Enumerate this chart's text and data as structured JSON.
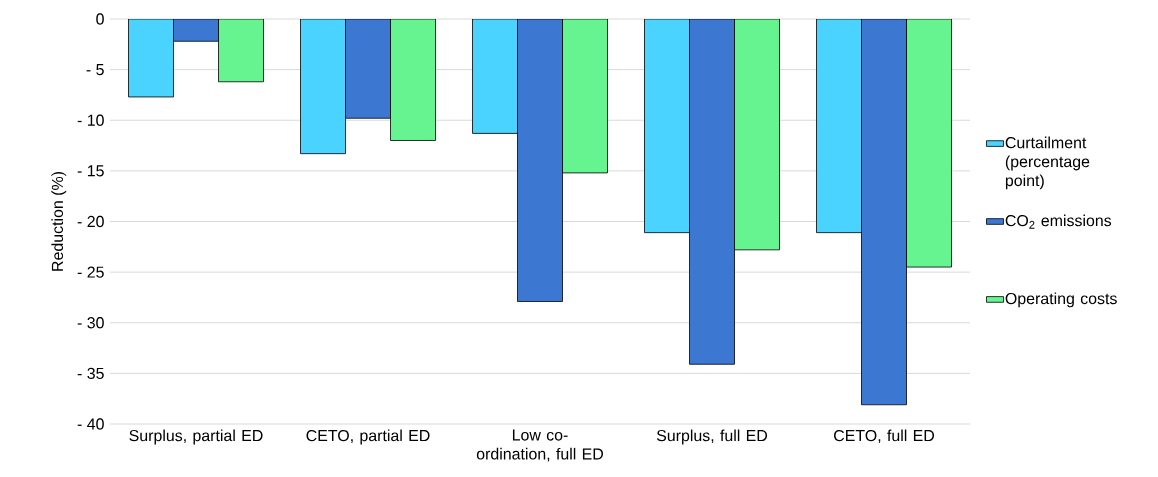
{
  "chart_data": {
    "type": "bar",
    "ylabel": "Reduction (%)",
    "categories": [
      "Surplus, partial ED",
      "CETO, partial ED",
      "Low co-ordination, full ED",
      "Surplus, full ED",
      "CETO, full ED"
    ],
    "series": [
      {
        "name": "Curtailment (percentage point)",
        "color": "#49d3fe",
        "values": [
          -7.7,
          -13.3,
          -11.3,
          -21.1,
          -21.1
        ]
      },
      {
        "name": "CO$_{2}$ emissions",
        "color": "#3c78d2",
        "values": [
          -2.2,
          -9.8,
          -27.9,
          -34.1,
          -38.1
        ]
      },
      {
        "name": "Operating costs",
        "color": "#66f490",
        "values": [
          -6.2,
          -12.0,
          -15.2,
          -22.8,
          -24.5
        ]
      }
    ],
    "ylim": [
      -40,
      0
    ],
    "yticks": [
      {
        "value": -40,
        "label": "- 40"
      },
      {
        "value": -35,
        "label": "- 35"
      },
      {
        "value": -30,
        "label": "- 30"
      },
      {
        "value": -25,
        "label": "- 25"
      },
      {
        "value": -20,
        "label": "- 20"
      },
      {
        "value": -15,
        "label": "- 15"
      },
      {
        "value": -10,
        "label": "- 10"
      },
      {
        "value": -5,
        "label": "- 5"
      },
      0
    ],
    "grid": "y",
    "legend": "right"
  }
}
